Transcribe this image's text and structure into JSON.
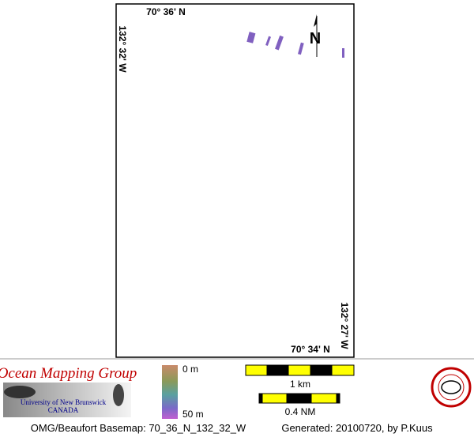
{
  "map": {
    "labels": {
      "top_lat": "70° 36' N",
      "bottom_lat": "70° 34' N",
      "left_lon": "132° 32' W",
      "right_lon": "132° 27' W",
      "north": "N"
    }
  },
  "legend": {
    "organization": "Ocean Mapping Group",
    "university": "University of New Brunswick",
    "country": "CANADA",
    "depth_min": "0 m",
    "depth_max": "50 m",
    "scale_km": "1 km",
    "scale_nm": "0.4 NM"
  },
  "footer": {
    "basemap": "OMG/Beaufort Basemap: 70_36_N_132_32_W",
    "generated": "Generated: 20100720, by P.Kuus"
  }
}
